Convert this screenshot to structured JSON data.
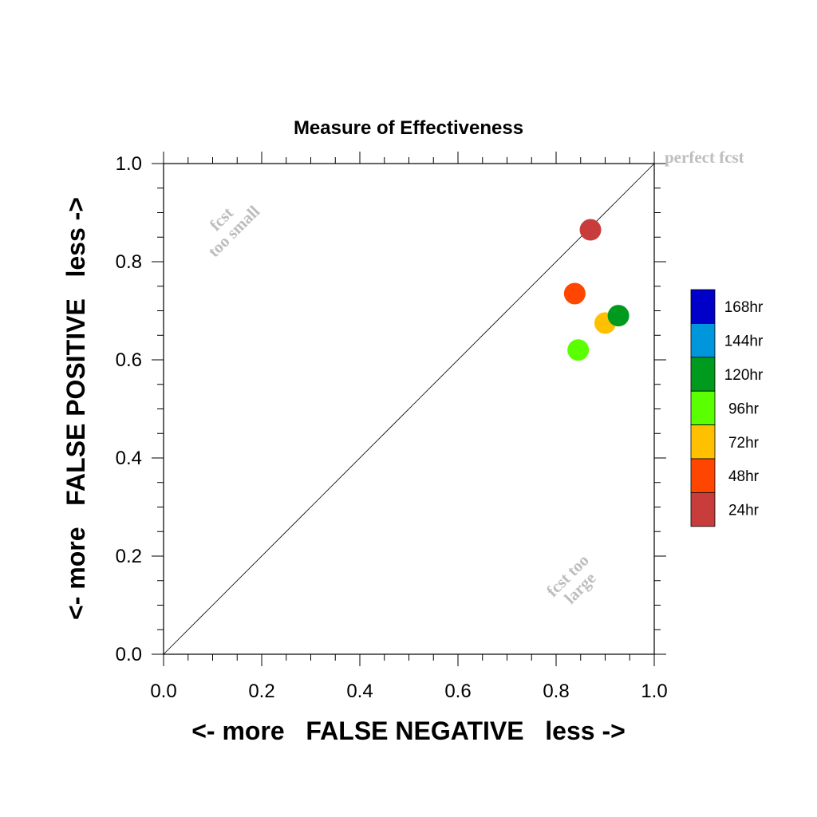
{
  "chart_data": {
    "type": "scatter",
    "title": "Measure of Effectiveness",
    "xlabel": "<- more   FALSE NEGATIVE   less ->",
    "ylabel": "<- more   FALSE POSITIVE   less ->",
    "xlim": [
      0.0,
      1.0
    ],
    "ylim": [
      0.0,
      1.0
    ],
    "xticks": [
      "0.0",
      "0.2",
      "0.4",
      "0.6",
      "0.8",
      "1.0"
    ],
    "yticks": [
      "0.0",
      "0.2",
      "0.4",
      "0.6",
      "0.8",
      "1.0"
    ],
    "grid": false,
    "reference_line": "diagonal y = x",
    "annotations": {
      "perfect": "perfect fcst",
      "too_small_1": "fcst",
      "too_small_2": "too small",
      "too_large_1": "fcst too",
      "too_large_2": "large"
    },
    "series": [
      {
        "name": "24hr",
        "color": "#c83c3c",
        "x": 0.87,
        "y": 0.865
      },
      {
        "name": "48hr",
        "color": "#ff4600",
        "x": 0.838,
        "y": 0.735
      },
      {
        "name": "72hr",
        "color": "#ffc000",
        "x": 0.9,
        "y": 0.675
      },
      {
        "name": "96hr",
        "color": "#5aff00",
        "x": 0.845,
        "y": 0.62
      },
      {
        "name": "120hr",
        "color": "#009a1e",
        "x": 0.927,
        "y": 0.69
      }
    ],
    "legend": {
      "placement": "right",
      "entries": [
        {
          "label": "168hr",
          "color": "#0000c8"
        },
        {
          "label": "144hr",
          "color": "#0096dc"
        },
        {
          "label": "120hr",
          "color": "#009a1e"
        },
        {
          "label": "96hr",
          "color": "#5aff00"
        },
        {
          "label": "72hr",
          "color": "#ffc000"
        },
        {
          "label": "48hr",
          "color": "#ff4600"
        },
        {
          "label": "24hr",
          "color": "#c83c3c"
        }
      ]
    }
  }
}
